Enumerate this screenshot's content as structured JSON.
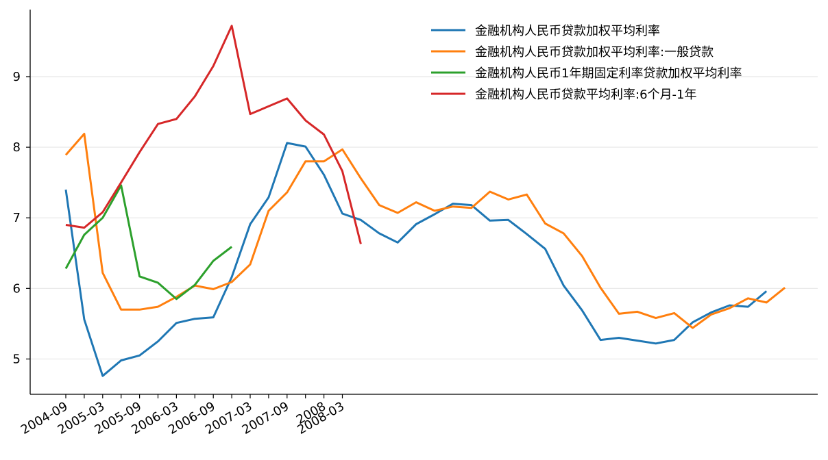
{
  "chart_data": {
    "type": "line",
    "title": "",
    "xlabel": "",
    "ylabel": "",
    "grid": "y",
    "legend_position": "top-right",
    "ylim": [
      4.5,
      9.95
    ],
    "yticks": [
      5,
      6,
      7,
      8,
      9
    ],
    "x": [
      "2004-09",
      "2004-12",
      "2005-03",
      "2005-06",
      "2005-09",
      "2005-12",
      "2006-03",
      "2006-06",
      "2006-09",
      "2006-12",
      "2007-03",
      "2007-06",
      "2007-09",
      "2007-12",
      "2008",
      "2008-03",
      "2008-06",
      "2008-09",
      "2008-12",
      "2009-03",
      "2009-06",
      "2009-09",
      "2009-12",
      "2010-03",
      "2010-06",
      "2010-09",
      "2010-12",
      "2011-03",
      "2011-06",
      "2011-09",
      "2011-12",
      "2012-03",
      "2012-06",
      "2012-09",
      "2012-12",
      "2013-03",
      "2013-06",
      "2013-09",
      "2013-12",
      "2014-03",
      "2014-06",
      "2014-09",
      "2014-12",
      "2015-03",
      "2015-06"
    ],
    "xtick_labels": [
      "2004-09",
      "",
      "2005-03",
      "",
      "2005-09",
      "",
      "2006-03",
      "",
      "2006-09",
      "",
      "2007-03",
      "",
      "2007-09",
      "",
      "2008",
      "2008-03"
    ],
    "series": [
      {
        "name": "金融机构人民币贷款加权平均利率",
        "color": "#1f77b4",
        "values": [
          7.4,
          5.56,
          4.76,
          4.98,
          5.05,
          5.25,
          5.51,
          5.57,
          5.59,
          6.16,
          6.91,
          7.29,
          8.06,
          8.01,
          7.61,
          7.06,
          6.97,
          6.78,
          6.65,
          6.91,
          7.05,
          7.2,
          7.18,
          6.96,
          6.97,
          6.77,
          6.56,
          6.04,
          5.69,
          5.27,
          5.3,
          5.26,
          5.22,
          5.27,
          5.52,
          5.66,
          5.76,
          5.74,
          5.96,
          null,
          null,
          null,
          null,
          null,
          null
        ]
      },
      {
        "name": "金融机构人民币贷款加权平均利率:一般贷款",
        "color": "#ff7f0e",
        "values": [
          7.89,
          8.19,
          6.22,
          5.7,
          5.7,
          5.74,
          5.88,
          6.04,
          5.99,
          6.09,
          6.34,
          7.1,
          7.36,
          7.8,
          7.8,
          7.97,
          7.56,
          7.18,
          7.07,
          7.22,
          7.1,
          7.16,
          7.14,
          7.37,
          7.26,
          7.33,
          6.92,
          6.78,
          6.46,
          6.01,
          5.64,
          5.67,
          5.58,
          5.65,
          5.44,
          5.63,
          5.72,
          5.86,
          5.8,
          6.01,
          null,
          null,
          null,
          null,
          null
        ]
      },
      {
        "name": "金融机构人民币1年期固定利率贷款加权平均利率",
        "color": "#2ca02c",
        "values": [
          6.28,
          6.76,
          7.0,
          7.46,
          6.17,
          6.08,
          5.85,
          6.05,
          6.39,
          6.59,
          null,
          null,
          null,
          null,
          null,
          null,
          null,
          null,
          null,
          null,
          null,
          null,
          null,
          null,
          null,
          null,
          null,
          null,
          null,
          null,
          null,
          null,
          null,
          null,
          null,
          null,
          null,
          null,
          null,
          null,
          null,
          null,
          null,
          null,
          null
        ]
      },
      {
        "name": "金融机构人民币贷款平均利率:6个月-1年",
        "color": "#d62728",
        "values": [
          6.9,
          6.86,
          7.08,
          7.5,
          7.93,
          8.33,
          8.4,
          8.72,
          9.15,
          9.72,
          8.47,
          8.58,
          8.69,
          8.38,
          8.18,
          7.66,
          6.63,
          null,
          null,
          null,
          null,
          null,
          null,
          null,
          null,
          null,
          null,
          null,
          null,
          null,
          null,
          null,
          null,
          null,
          null,
          null,
          null,
          null,
          null,
          null,
          null,
          null,
          null,
          null,
          null
        ]
      }
    ]
  }
}
